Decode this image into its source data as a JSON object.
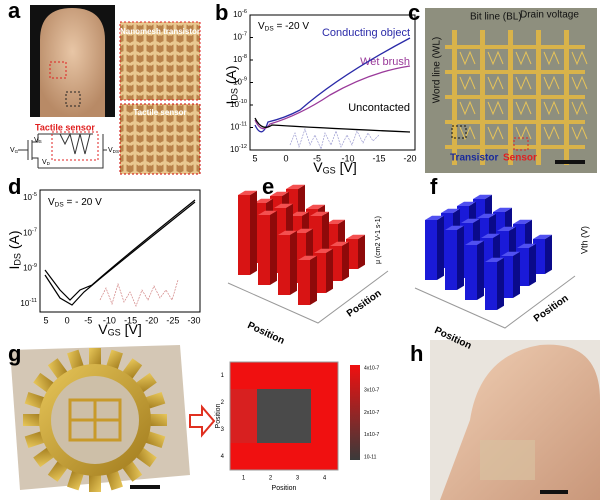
{
  "figure": {
    "a": {
      "label": "a",
      "inset_top": "Nanomesh transistor",
      "inset_bottom": "Tactile sensor",
      "circuit_title": "Tactile sensor",
      "circuit_labels": [
        {
          "v": "V",
          "s": "G"
        },
        {
          "v": "V",
          "s": "S"
        },
        {
          "v": "V",
          "s": "D"
        },
        {
          "v": "V",
          "s": "DS"
        }
      ]
    },
    "b": {
      "label": "b",
      "condition": {
        "v": "V",
        "s": "DS",
        "rest": " = -20 V"
      },
      "y_label": {
        "v": "I",
        "s": "DS",
        "rest": " (A)"
      },
      "x_label": {
        "v": "V",
        "s": "GS",
        "rest": " [V]"
      },
      "legend": [
        "Conducting object",
        "Wet brush",
        "Uncontacted"
      ],
      "yticks": [
        {
          "base": "10",
          "exp": "-6"
        },
        {
          "base": "10",
          "exp": "-7"
        },
        {
          "base": "10",
          "exp": "-8"
        },
        {
          "base": "10",
          "exp": "-9"
        },
        {
          "base": "10",
          "exp": "-10"
        },
        {
          "base": "10",
          "exp": "-11"
        },
        {
          "base": "10",
          "exp": "-12"
        }
      ],
      "xticks": [
        "5",
        "0",
        "-5",
        "-10",
        "-15",
        "-20"
      ]
    },
    "c": {
      "label": "c",
      "bit_line": "Bit line (BL)",
      "drain": "Drain voltage",
      "word_line": "Word line (WL)",
      "transistor": "Transistor",
      "sensor": "Sensor"
    },
    "d": {
      "label": "d",
      "condition": {
        "v": "V",
        "s": "DS",
        "rest": " = - 20 V"
      },
      "y_label": {
        "v": "I",
        "s": "DS",
        "rest": " (A)"
      },
      "x_label": {
        "v": "V",
        "s": "GS",
        "rest": " [V]"
      },
      "yticks": [
        {
          "base": "10",
          "exp": "-5"
        },
        {
          "base": "10",
          "exp": "-7"
        },
        {
          "base": "10",
          "exp": "-9"
        },
        {
          "base": "10",
          "exp": "-11"
        }
      ],
      "xticks": [
        "5",
        "0",
        "-5",
        "-10",
        "-15",
        "-20",
        "-25",
        "-30"
      ]
    },
    "e": {
      "label": "e",
      "z_label": "μ (cm2 V-1 s-1)",
      "x_label": "Position",
      "y_label": "Position"
    },
    "f": {
      "label": "f",
      "z_label": "Vth (V)",
      "x_label": "Position",
      "y_label": "Position"
    },
    "g": {
      "label": "g",
      "x_label": "Position",
      "y_label": "Position",
      "ticks": [
        "1",
        "2",
        "3",
        "4"
      ],
      "colorbar": [
        "4x10-7",
        "3x10-7",
        "2x10-7",
        "1x10-7",
        "10-11"
      ]
    },
    "h": {
      "label": "h"
    }
  }
}
